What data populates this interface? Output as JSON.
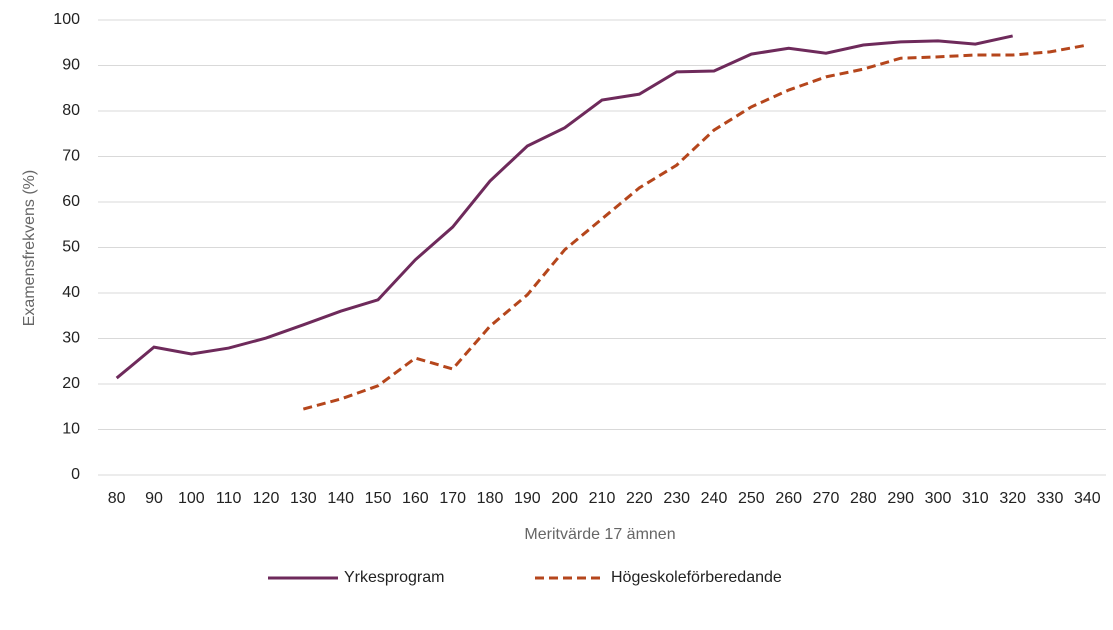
{
  "chart_data": {
    "type": "line",
    "xlabel": "Meritvärde 17 ämnen",
    "ylabel": "Examensfrekvens (%)",
    "categories": [
      "80",
      "90",
      "100",
      "110",
      "120",
      "130",
      "140",
      "150",
      "160",
      "170",
      "180",
      "190",
      "200",
      "210",
      "220",
      "230",
      "240",
      "250",
      "260",
      "270",
      "280",
      "290",
      "300",
      "310",
      "320",
      "330",
      "340"
    ],
    "series": [
      {
        "name": "Yrkesprogram",
        "color": "#6e2a5b",
        "dash": false,
        "values": [
          21.3,
          28.1,
          26.6,
          27.9,
          30.1,
          33.0,
          36.0,
          38.5,
          47.3,
          54.5,
          64.6,
          72.3,
          76.3,
          82.4,
          83.7,
          88.6,
          88.8,
          92.5,
          93.8,
          92.7,
          94.5,
          95.2,
          95.4,
          94.7,
          96.5,
          null,
          null
        ]
      },
      {
        "name": "Högeskoleförberedande",
        "color": "#b5461c",
        "dash": true,
        "values": [
          null,
          null,
          null,
          null,
          null,
          14.5,
          16.7,
          19.6,
          25.7,
          23.3,
          32.7,
          39.6,
          49.5,
          56.3,
          63.1,
          68.1,
          75.8,
          80.9,
          84.6,
          87.5,
          89.2,
          91.6,
          91.9,
          92.3,
          92.3,
          93.0,
          94.5
        ]
      }
    ],
    "ylim": [
      0,
      100
    ],
    "yticks": [
      0,
      10,
      20,
      30,
      40,
      50,
      60,
      70,
      80,
      90,
      100
    ],
    "grid": true,
    "legend": "bottom"
  }
}
